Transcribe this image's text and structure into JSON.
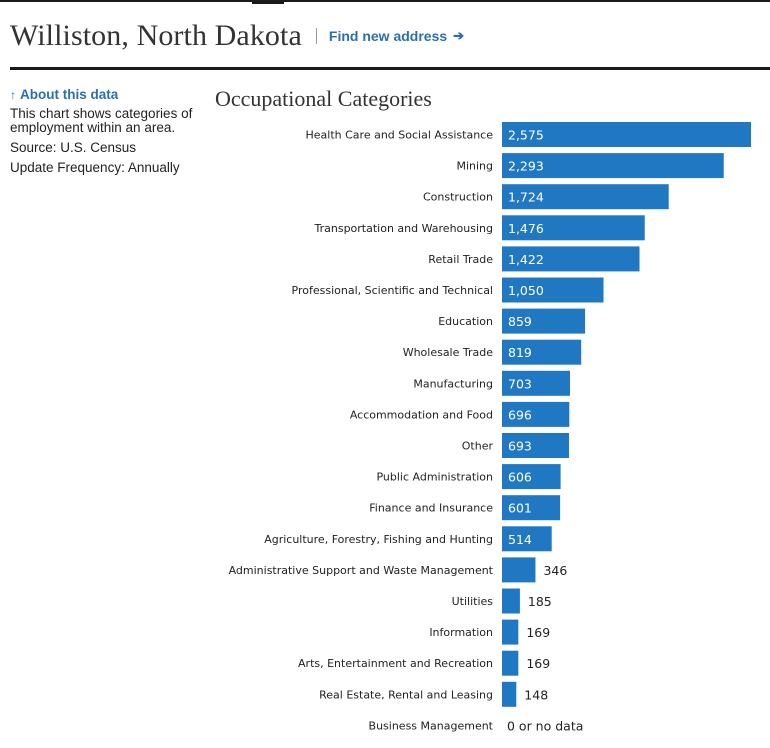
{
  "header": {
    "city_title": "Williston, North Dakota",
    "find_link": "Find new address",
    "find_arrow": "➔"
  },
  "sidebar": {
    "about_link": "About this data",
    "about_icon": "↑",
    "description": "This chart shows categories of employment within an area.",
    "source": "Source: U.S. Census",
    "update_frequency": "Update Frequency: Annually"
  },
  "colors": {
    "bar": "#2078c3",
    "link": "#2a6fb0"
  },
  "chart_data": {
    "type": "bar",
    "orientation": "horizontal",
    "title": "Occupational Categories",
    "categories": [
      "Health Care and Social Assistance",
      "Mining",
      "Construction",
      "Transportation and Warehousing",
      "Retail Trade",
      "Professional, Scientific and Technical",
      "Education",
      "Wholesale Trade",
      "Manufacturing",
      "Accommodation and Food",
      "Other",
      "Public Administration",
      "Finance and Insurance",
      "Agriculture, Forestry, Fishing and Hunting",
      "Administrative Support and Waste Management",
      "Utilities",
      "Information",
      "Arts, Entertainment and Recreation",
      "Real Estate, Rental and Leasing",
      "Business Management"
    ],
    "values": [
      2575,
      2293,
      1724,
      1476,
      1422,
      1050,
      859,
      819,
      703,
      696,
      693,
      606,
      601,
      514,
      346,
      185,
      169,
      169,
      148,
      0
    ],
    "value_labels": [
      "2,575",
      "2,293",
      "1,724",
      "1,476",
      "1,422",
      "1,050",
      "859",
      "819",
      "703",
      "696",
      "693",
      "606",
      "601",
      "514",
      "346",
      "185",
      "169",
      "169",
      "148",
      "0 or no data"
    ],
    "xlim": [
      0,
      2575
    ],
    "grid": false,
    "legend": "none"
  }
}
